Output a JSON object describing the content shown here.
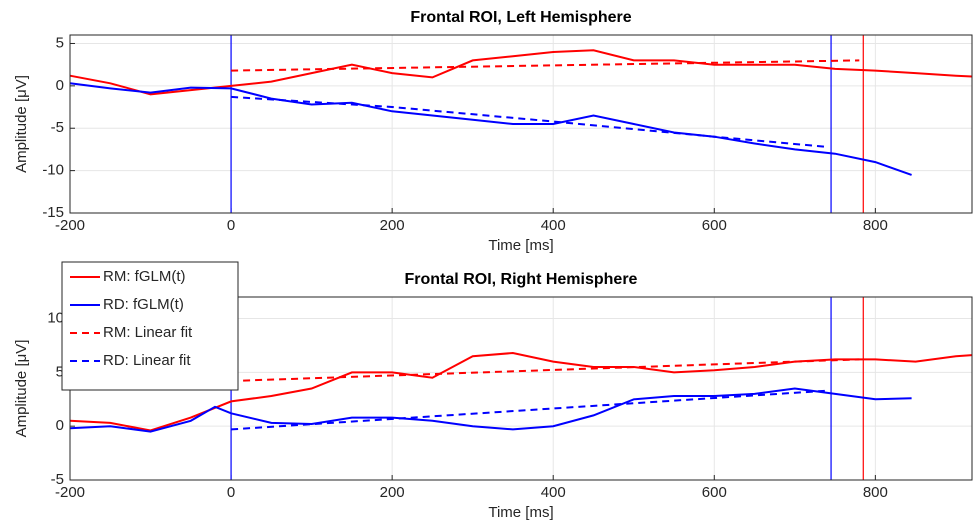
{
  "chart_data": [
    {
      "type": "line",
      "title": "Frontal ROI, Left Hemisphere",
      "x_label": "Time [ms]",
      "y_label": "Amplitude [μV]",
      "xlim": [
        -200,
        920
      ],
      "xticks": [
        -200,
        0,
        200,
        400,
        600,
        800
      ],
      "ylim": [
        -15,
        6
      ],
      "yticks": [
        -15,
        -10,
        -5,
        0,
        5
      ],
      "grid": true,
      "vlines": [
        {
          "x": 0,
          "color": "#0000ff"
        },
        {
          "x": 745,
          "color": "#0000ff"
        },
        {
          "x": 785,
          "color": "#ff0000"
        }
      ],
      "series": [
        {
          "name": "RM: fGLM(t)",
          "color": "#ff0000",
          "dashed": false,
          "x": [
            -200,
            -150,
            -100,
            -50,
            0,
            50,
            100,
            150,
            200,
            250,
            300,
            350,
            400,
            450,
            500,
            550,
            600,
            650,
            700,
            750,
            800,
            850,
            900,
            920
          ],
          "values": [
            1.2,
            0.3,
            -1,
            -0.5,
            0,
            0.5,
            1.5,
            2.5,
            1.5,
            1,
            3,
            3.5,
            4,
            4.2,
            3,
            3,
            2.5,
            2.5,
            2.5,
            2,
            1.8,
            1.5,
            1.2,
            1.1
          ]
        },
        {
          "name": "RD: fGLM(t)",
          "color": "#0000ff",
          "dashed": false,
          "x": [
            -200,
            -150,
            -100,
            -50,
            0,
            50,
            100,
            150,
            200,
            250,
            300,
            350,
            400,
            450,
            500,
            550,
            600,
            650,
            700,
            750,
            800,
            845
          ],
          "values": [
            0.3,
            -0.3,
            -0.8,
            -0.2,
            -0.3,
            -1.5,
            -2.2,
            -2,
            -3,
            -3.5,
            -4,
            -4.5,
            -4.5,
            -3.5,
            -4.5,
            -5.5,
            -6,
            -6.8,
            -7.5,
            -8,
            -9,
            -10.5
          ]
        },
        {
          "name": "RM: Linear fit",
          "color": "#ff0000",
          "dashed": true,
          "x": [
            0,
            780
          ],
          "values": [
            1.8,
            3.0
          ]
        },
        {
          "name": "RD: Linear fit",
          "color": "#0000ff",
          "dashed": true,
          "x": [
            0,
            200,
            400,
            600,
            740
          ],
          "values": [
            -1.3,
            -2.5,
            -4.2,
            -6,
            -7.2
          ]
        }
      ]
    },
    {
      "type": "line",
      "title": "Frontal ROI, Right Hemisphere",
      "x_label": "Time [ms]",
      "y_label": "Amplitude [μV]",
      "xlim": [
        -200,
        920
      ],
      "xticks": [
        -200,
        0,
        200,
        400,
        600,
        800
      ],
      "ylim": [
        -5,
        12
      ],
      "yticks": [
        -5,
        0,
        5,
        10
      ],
      "grid": true,
      "legend": "upper left",
      "vlines": [
        {
          "x": 0,
          "color": "#0000ff"
        },
        {
          "x": 745,
          "color": "#0000ff"
        },
        {
          "x": 785,
          "color": "#ff0000"
        }
      ],
      "series": [
        {
          "name": "RM: fGLM(t)",
          "color": "#ff0000",
          "dashed": false,
          "x": [
            -200,
            -150,
            -100,
            -50,
            0,
            50,
            100,
            150,
            200,
            250,
            300,
            350,
            400,
            450,
            500,
            550,
            600,
            650,
            700,
            750,
            800,
            850,
            900,
            920
          ],
          "values": [
            0.5,
            0.3,
            -0.4,
            0.8,
            2.3,
            2.8,
            3.5,
            5,
            5,
            4.5,
            6.5,
            6.8,
            6,
            5.5,
            5.5,
            5,
            5.2,
            5.5,
            6,
            6.2,
            6.2,
            6,
            6.5,
            6.6
          ]
        },
        {
          "name": "RD: fGLM(t)",
          "color": "#0000ff",
          "dashed": false,
          "x": [
            -200,
            -150,
            -100,
            -50,
            -20,
            0,
            50,
            100,
            150,
            200,
            250,
            300,
            350,
            400,
            450,
            500,
            550,
            600,
            650,
            700,
            750,
            800,
            845
          ],
          "values": [
            -0.2,
            0,
            -0.5,
            0.5,
            1.8,
            1.2,
            0.3,
            0.2,
            0.8,
            0.8,
            0.5,
            0,
            -0.3,
            0,
            1,
            2.5,
            2.8,
            2.8,
            3,
            3.5,
            3,
            2.5,
            2.6
          ]
        },
        {
          "name": "RM: Linear fit",
          "color": "#ff0000",
          "dashed": true,
          "x": [
            0,
            780
          ],
          "values": [
            4.2,
            6.2
          ]
        },
        {
          "name": "RD: Linear fit",
          "color": "#0000ff",
          "dashed": true,
          "x": [
            0,
            740
          ],
          "values": [
            -0.3,
            3.3
          ]
        }
      ]
    }
  ]
}
